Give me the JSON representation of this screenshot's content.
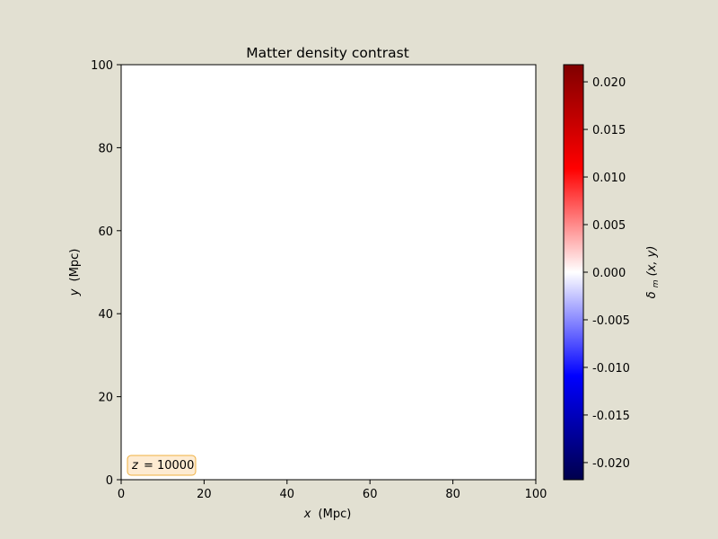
{
  "chart_data": {
    "type": "heatmap",
    "title": "Matter density contrast",
    "xlabel_var": "x",
    "xlabel_unit": "(Mpc)",
    "ylabel_var": "y",
    "ylabel_unit": "(Mpc)",
    "xlim": [
      0,
      100
    ],
    "ylim": [
      0,
      100
    ],
    "xticks": [
      0,
      20,
      40,
      60,
      80,
      100
    ],
    "yticks": [
      0,
      20,
      40,
      60,
      80,
      100
    ],
    "grid": false,
    "field_value": 0.0,
    "colormap": "seismic",
    "colormap_stops": [
      "#00004c",
      "#0000ff",
      "#ffffff",
      "#ff0000",
      "#800000"
    ],
    "colorbar": {
      "label_main": "δ",
      "label_sub": "m",
      "label_args": "(x, y)",
      "range": [
        -0.0218,
        0.0218
      ],
      "ticks": [
        "-0.020",
        "-0.015",
        "-0.010",
        "-0.005",
        "0.000",
        "0.005",
        "0.010",
        "0.015",
        "0.020"
      ],
      "tick_values": [
        -0.02,
        -0.015,
        -0.01,
        -0.005,
        0.0,
        0.005,
        0.01,
        0.015,
        0.02
      ]
    },
    "annotation": {
      "var": "z",
      "text": "= 10000",
      "placement": "bottom-left",
      "box_face": "#fdebd2",
      "box_edge": "#f0b040"
    }
  }
}
